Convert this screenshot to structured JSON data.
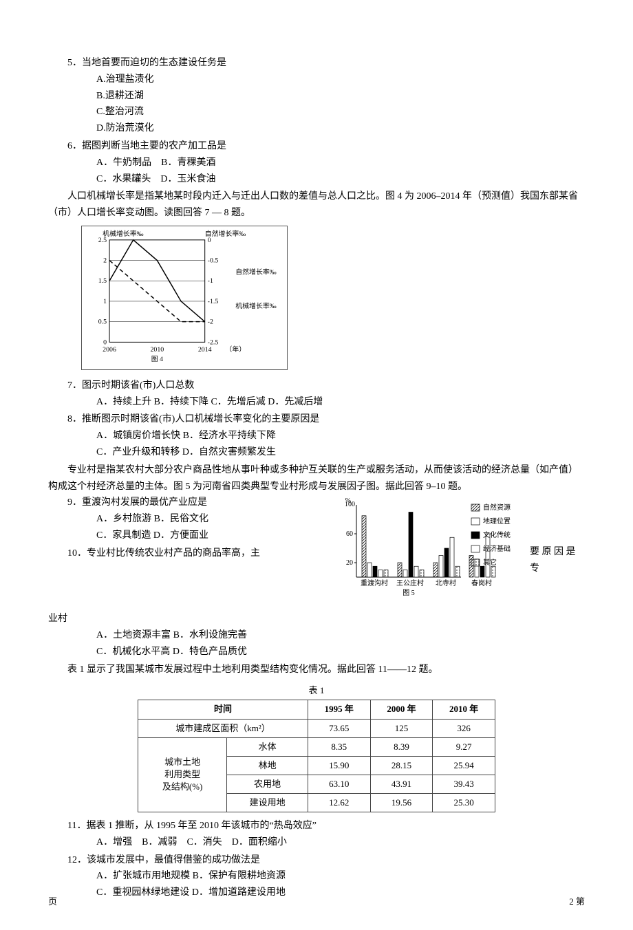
{
  "q5": {
    "stem": "5．当地首要而迫切的生态建设任务是",
    "opts": [
      "A.治理盐渍化",
      "B.退耕还湖",
      "C.整治河流",
      "D.防治荒漠化"
    ]
  },
  "q6": {
    "stem": "6．据图判断当地主要的农产加工品是",
    "line1": "A．牛奶制品　B．青稞美酒",
    "line2": "C．水果罐头　D．玉米食油"
  },
  "passage7_8": "人口机械增长率是指某地某时段内迁入与迁出人口数的差值与总人口之比。图 4 为 2006–2014 年（预测值）我国东部某省（市）人口增长率变动图。读图回答 7 — 8 题。",
  "fig4": {
    "xlim": [
      2006,
      2014
    ],
    "left_ylim": [
      0,
      2.5
    ],
    "right_ylim": [
      -2.5,
      0
    ],
    "left_label": "机械增长率‰",
    "right_label": "自然增长率‰",
    "caption": "图 4",
    "legend_a": "自然增长率‰",
    "legend_b": "机械增长率‰",
    "x_ticks": [
      2006,
      2010,
      2014
    ],
    "left_ticks": [
      0,
      0.5,
      1,
      1.5,
      2,
      2.5
    ],
    "right_ticks": [
      0,
      -0.5,
      -1,
      -1.5,
      -2,
      -2.5
    ],
    "year_suffix": "（年）",
    "mech_line": [
      [
        2006,
        1.5
      ],
      [
        2008,
        2.5
      ],
      [
        2010,
        2.0
      ],
      [
        2012,
        1.0
      ],
      [
        2014,
        0.5
      ]
    ],
    "nat_line": [
      [
        2006,
        -0.5
      ],
      [
        2008,
        -1.0
      ],
      [
        2010,
        -1.5
      ],
      [
        2012,
        -2.0
      ],
      [
        2014,
        -2.0
      ]
    ],
    "colors": {
      "axis": "#000000",
      "mech": "#000000",
      "nat": "#000000"
    }
  },
  "q7": {
    "stem": "7．图示时期该省(市)人口总数",
    "opts": "A．持续上升  B．持续下降  C．先增后减  D．先减后增"
  },
  "q8": {
    "stem": "8．推断图示时期该省(市)人口机械增长率变化的主要原因是",
    "line1": "A．城镇房价增长快  B．经济水平持续下降",
    "line2": "C．产业升级和转移  D．自然灾害频繁发生"
  },
  "passage9_10": "专业村是指某农村大部分农户商品性地从事叶种或多种护互关联的生产或服务活动，从而使该活动的经济总量（如产值）构成这个村经济总量的主体。图 5 为河南省四类典型专业村形成与发展因子图。据此回答 9–10 题。",
  "q9": {
    "stem": "9．重渡沟村发展的最优产业应是",
    "line1": "A．乡村旅游  B．民俗文化",
    "line2": "C．家具制造  D．方便面业"
  },
  "q10": {
    "stem_left": "10．专业村比传统农业村产品的商品率高，主",
    "stem_right": "要 原 因 是 专",
    "tail": "业村",
    "line1": "A．土地资源丰富  B．水利设施完善",
    "line2": "C．机械化水平高  D．特色产品质优"
  },
  "fig5": {
    "y_label": "%",
    "y_max": "100",
    "y_ticks": [
      20,
      60
    ],
    "x_labels": [
      "重渡沟村",
      "王公庄村",
      "北寺村",
      "春岗村"
    ],
    "caption": "图 5",
    "legend": [
      "自然资源",
      "地理位置",
      "文化传统",
      "经济基础",
      "其它"
    ],
    "patterns": [
      "diag",
      "white",
      "black",
      "whitebox",
      "dots"
    ],
    "data": {
      "v1": [
        85,
        20,
        20,
        30
      ],
      "v2": [
        20,
        10,
        30,
        25
      ],
      "v3": [
        15,
        90,
        40,
        15
      ],
      "v4": [
        10,
        15,
        55,
        60
      ],
      "v5": [
        10,
        10,
        15,
        15
      ]
    },
    "colors": {
      "axis": "#000000",
      "bar_border": "#000000"
    }
  },
  "passage11_12": "表 1 显示了我国某城市发展过程中土地利用类型结构变化情况。据此回答 11——12 题。",
  "table1": {
    "title": "表 1",
    "header_time": "时间",
    "header_years": [
      "1995 年",
      "2000 年",
      "2010 年"
    ],
    "row_area_label": "城市建成区面积（km²）",
    "row_area": [
      "73.65",
      "125",
      "326"
    ],
    "group_label1": "城市土地",
    "group_label2": "利用类型",
    "group_label3": "及结构(%)",
    "rows": [
      {
        "label": "水体",
        "vals": [
          "8.35",
          "8.39",
          "9.27"
        ]
      },
      {
        "label": "林地",
        "vals": [
          "15.90",
          "28.15",
          "25.94"
        ]
      },
      {
        "label": "农用地",
        "vals": [
          "63.10",
          "43.91",
          "39.43"
        ]
      },
      {
        "label": "建设用地",
        "vals": [
          "12.62",
          "19.56",
          "25.30"
        ]
      }
    ]
  },
  "q11": {
    "stem": "11．据表 1 推断，从 1995 年至 2010 年该城市的“热岛效应”",
    "opts": "A．增强　B．减弱　C．消失　D．面积缩小"
  },
  "q12": {
    "stem": "12．该城市发展中，最值得借鉴的成功做法是",
    "line1": "A．扩张城市用地规模  B．保护有限耕地资源",
    "line2": "C．重视园林绿地建设  D．增加道路建设用地"
  },
  "footer": {
    "left": "页",
    "right": "2  第"
  }
}
